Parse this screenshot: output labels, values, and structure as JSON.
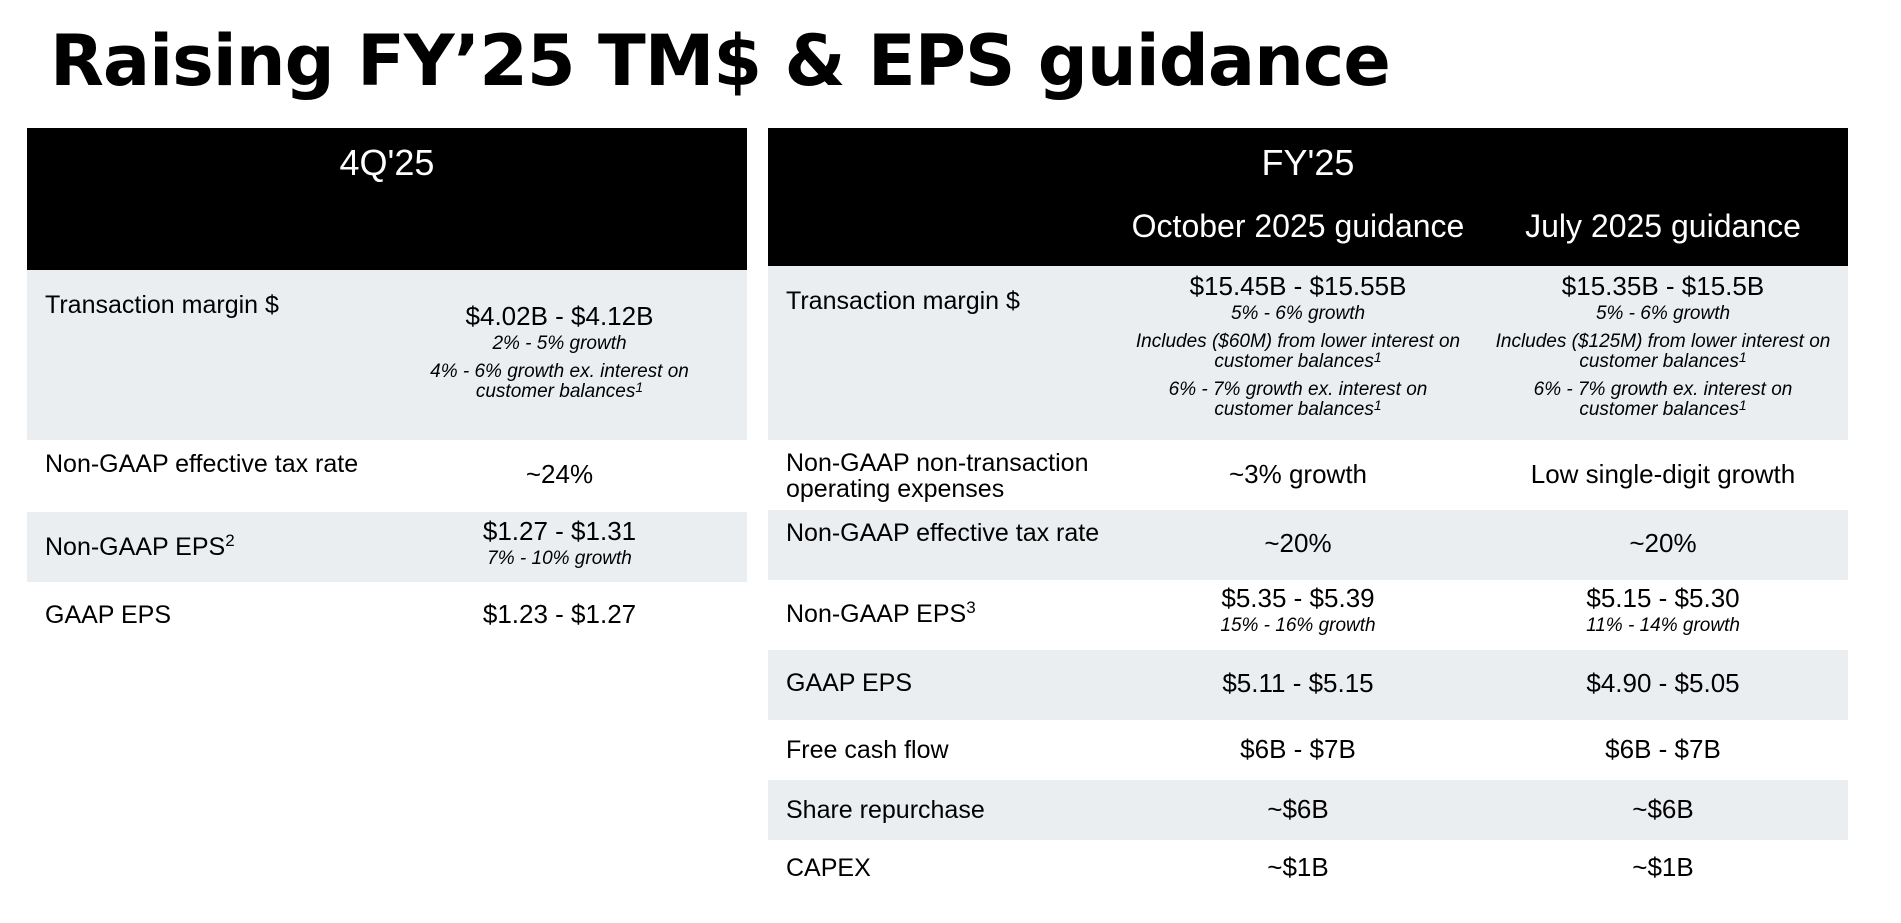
{
  "title": "Raising FY’25 TM$ & EPS guidance",
  "quarter": {
    "header": "4Q'25",
    "rows": [
      {
        "label": "Transaction margin $",
        "value": "$4.02B - $4.12B",
        "note1": "2% - 5% growth",
        "note2": "4% - 6% growth ex. interest on customer balances",
        "note2_ref": "1"
      },
      {
        "label": "Non-GAAP effective tax rate",
        "value": "~24%"
      },
      {
        "label": "Non-GAAP EPS",
        "label_ref": "2",
        "value": "$1.27 - $1.31",
        "note1": "7% - 10% growth"
      },
      {
        "label": "GAAP EPS",
        "value": "$1.23 - $1.27"
      }
    ]
  },
  "fy": {
    "header": "FY'25",
    "col_oct": "October 2025 guidance",
    "col_jul": "July 2025 guidance",
    "rows": [
      {
        "label": "Transaction margin $",
        "oct": {
          "value": "$15.45B - $15.55B",
          "note1": "5% - 6% growth",
          "note2": "Includes ($60M) from lower interest on customer balances",
          "note3": "6% - 7% growth ex. interest on customer balances",
          "ref": "1"
        },
        "jul": {
          "value": "$15.35B - $15.5B",
          "note1": "5% - 6% growth",
          "note2": "Includes ($125M) from lower interest on customer balances",
          "note3": "6% - 7% growth ex. interest on customer balances",
          "ref": "1"
        }
      },
      {
        "label": "Non-GAAP non-transaction operating expenses",
        "oct": "~3% growth",
        "jul": "Low single-digit growth"
      },
      {
        "label": "Non-GAAP effective tax rate",
        "oct": "~20%",
        "jul": "~20%"
      },
      {
        "label": "Non-GAAP EPS",
        "label_ref": "3",
        "oct": {
          "value": "$5.35 - $5.39",
          "note1": "15% - 16% growth"
        },
        "jul": {
          "value": "$5.15 - $5.30",
          "note1": "11% - 14% growth"
        }
      },
      {
        "label": "GAAP EPS",
        "oct": "$5.11 - $5.15",
        "jul": "$4.90 - $5.05"
      },
      {
        "label": "Free cash flow",
        "oct": "$6B - $7B",
        "jul": "$6B - $7B"
      },
      {
        "label": "Share repurchase",
        "oct": "~$6B",
        "jul": "~$6B"
      },
      {
        "label": "CAPEX",
        "oct": "~$1B",
        "jul": "~$1B"
      }
    ]
  },
  "colors": {
    "header_bg": "#000000",
    "header_text": "#ffffff",
    "row_shade": "#ebeef1"
  }
}
